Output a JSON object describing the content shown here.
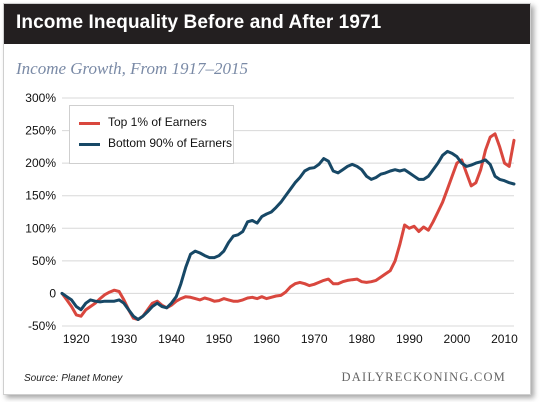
{
  "header": {
    "title": "Income Inequality Before and After 1971"
  },
  "footer": {
    "source": "Source: Planet Money",
    "brand": "DAILYRECKONING.COM"
  },
  "colors": {
    "top1": "#d9473e",
    "bottom90": "#174866",
    "header_bg": "#231f20",
    "subtitle": "#7a8aa6"
  },
  "chart_data": {
    "type": "line",
    "title": "Income Growth, From 1917–2015",
    "xlabel": "",
    "ylabel": "",
    "xlim": [
      1917,
      2012
    ],
    "ylim": [
      -50,
      300
    ],
    "xticks": [
      1920,
      1930,
      1940,
      1950,
      1960,
      1970,
      1980,
      1990,
      2000,
      2010
    ],
    "yticks": [
      -50,
      0,
      50,
      100,
      150,
      200,
      250,
      300
    ],
    "ytick_labels": [
      "-50%",
      "0",
      "50%",
      "100%",
      "150%",
      "200%",
      "250%",
      "300%"
    ],
    "xtick_labels": [
      "1920",
      "1930",
      "1940",
      "1950",
      "1960",
      "1970",
      "1980",
      "1990",
      "2000",
      "2010"
    ],
    "grid": "horizontal",
    "legend": "top-left",
    "series": [
      {
        "name": "Top 1% of Earners",
        "color_key": "top1",
        "x": [
          1917,
          1918,
          1919,
          1920,
          1921,
          1922,
          1923,
          1924,
          1925,
          1926,
          1927,
          1928,
          1929,
          1930,
          1931,
          1932,
          1933,
          1934,
          1935,
          1936,
          1937,
          1938,
          1939,
          1940,
          1941,
          1942,
          1943,
          1944,
          1945,
          1946,
          1947,
          1948,
          1949,
          1950,
          1951,
          1952,
          1953,
          1954,
          1955,
          1956,
          1957,
          1958,
          1959,
          1960,
          1961,
          1962,
          1963,
          1964,
          1965,
          1966,
          1967,
          1968,
          1969,
          1970,
          1971,
          1972,
          1973,
          1974,
          1975,
          1976,
          1977,
          1978,
          1979,
          1980,
          1981,
          1982,
          1983,
          1984,
          1985,
          1986,
          1987,
          1988,
          1989,
          1990,
          1991,
          1992,
          1993,
          1994,
          1995,
          1996,
          1997,
          1998,
          1999,
          2000,
          2001,
          2002,
          2003,
          2004,
          2005,
          2006,
          2007,
          2008,
          2009,
          2010,
          2011,
          2012
        ],
        "values": [
          0,
          -10,
          -20,
          -33,
          -35,
          -25,
          -20,
          -15,
          -8,
          -2,
          2,
          5,
          3,
          -10,
          -25,
          -38,
          -40,
          -35,
          -25,
          -15,
          -12,
          -18,
          -22,
          -18,
          -12,
          -8,
          -5,
          -6,
          -8,
          -10,
          -7,
          -9,
          -12,
          -11,
          -8,
          -10,
          -12,
          -12,
          -10,
          -7,
          -6,
          -8,
          -5,
          -8,
          -6,
          -4,
          -3,
          2,
          10,
          15,
          17,
          15,
          12,
          14,
          17,
          20,
          22,
          15,
          15,
          18,
          20,
          21,
          22,
          18,
          17,
          18,
          20,
          25,
          30,
          35,
          50,
          75,
          105,
          100,
          103,
          95,
          102,
          97,
          110,
          125,
          140,
          160,
          180,
          200,
          205,
          185,
          165,
          170,
          190,
          220,
          240,
          245,
          225,
          200,
          195,
          235
        ]
      },
      {
        "name": "Bottom 90% of Earners",
        "color_key": "bottom90",
        "x": [
          1917,
          1918,
          1919,
          1920,
          1921,
          1922,
          1923,
          1924,
          1925,
          1926,
          1927,
          1928,
          1929,
          1930,
          1931,
          1932,
          1933,
          1934,
          1935,
          1936,
          1937,
          1938,
          1939,
          1940,
          1941,
          1942,
          1943,
          1944,
          1945,
          1946,
          1947,
          1948,
          1949,
          1950,
          1951,
          1952,
          1953,
          1954,
          1955,
          1956,
          1957,
          1958,
          1959,
          1960,
          1961,
          1962,
          1963,
          1964,
          1965,
          1966,
          1967,
          1968,
          1969,
          1970,
          1971,
          1972,
          1973,
          1974,
          1975,
          1976,
          1977,
          1978,
          1979,
          1980,
          1981,
          1982,
          1983,
          1984,
          1985,
          1986,
          1987,
          1988,
          1989,
          1990,
          1991,
          1992,
          1993,
          1994,
          1995,
          1996,
          1997,
          1998,
          1999,
          2000,
          2001,
          2002,
          2003,
          2004,
          2005,
          2006,
          2007,
          2008,
          2009,
          2010,
          2011,
          2012
        ],
        "values": [
          0,
          -5,
          -10,
          -20,
          -25,
          -15,
          -10,
          -12,
          -13,
          -12,
          -12,
          -12,
          -10,
          -15,
          -25,
          -35,
          -40,
          -35,
          -28,
          -20,
          -15,
          -20,
          -22,
          -15,
          -5,
          15,
          40,
          60,
          65,
          62,
          58,
          55,
          55,
          58,
          65,
          78,
          88,
          90,
          95,
          110,
          112,
          108,
          118,
          122,
          125,
          132,
          140,
          150,
          160,
          170,
          178,
          188,
          192,
          193,
          198,
          207,
          203,
          188,
          185,
          190,
          195,
          198,
          195,
          190,
          180,
          175,
          178,
          183,
          185,
          188,
          190,
          188,
          190,
          185,
          180,
          175,
          175,
          180,
          190,
          200,
          212,
          218,
          215,
          210,
          200,
          195,
          197,
          200,
          202,
          205,
          198,
          180,
          175,
          173,
          170,
          168
        ]
      }
    ]
  }
}
